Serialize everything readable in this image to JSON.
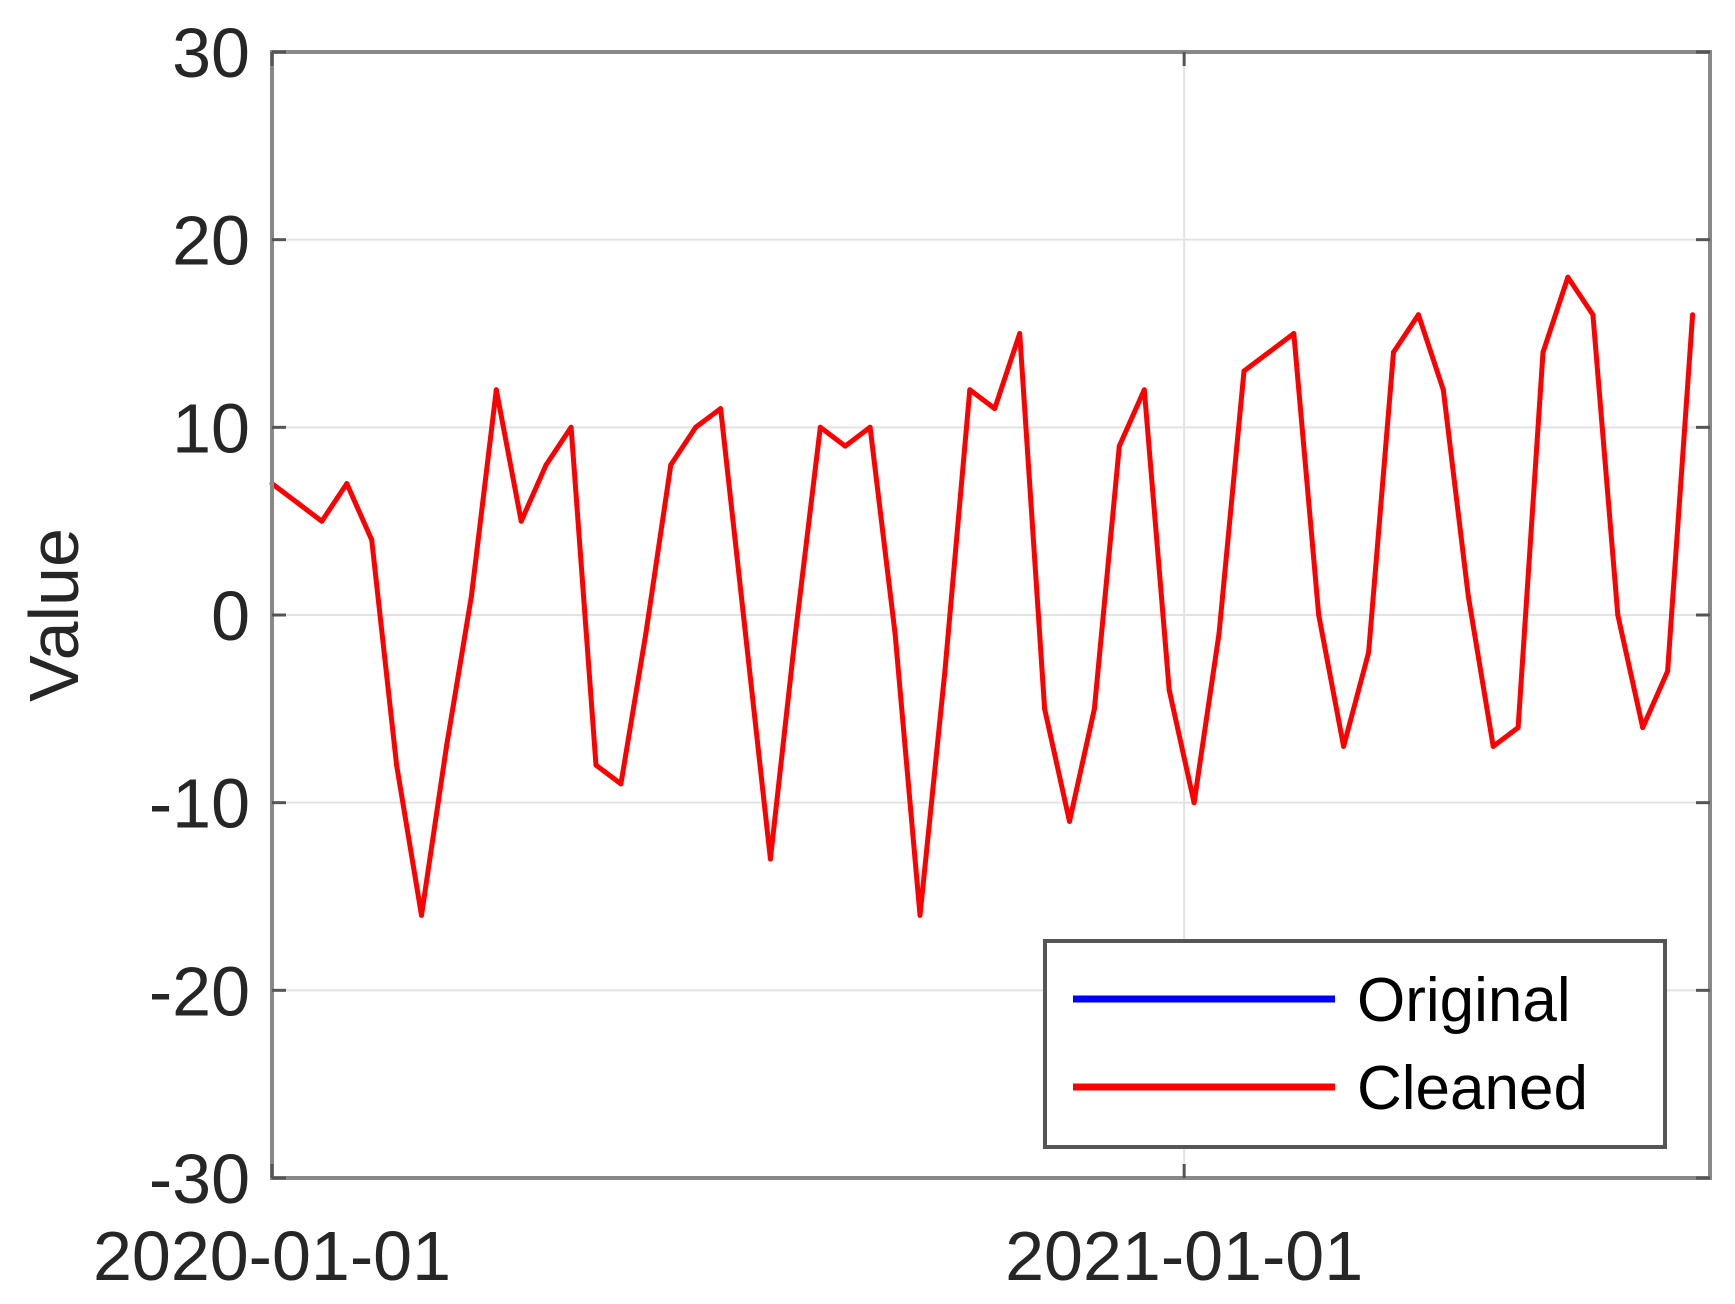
{
  "chart_data": {
    "type": "line",
    "title": "",
    "xlabel": "",
    "ylabel": "Value",
    "x_ticks": [
      "2020-01-01",
      "2021-01-01"
    ],
    "x_range": [
      "2020-01-01",
      "2021-07-31"
    ],
    "y_ticks": [
      -30,
      -20,
      -10,
      0,
      10,
      20,
      30
    ],
    "ylim": [
      -30,
      30
    ],
    "grid": true,
    "legend_position": "bottom-right",
    "series": [
      {
        "name": "Original",
        "color": "#0000ff",
        "x": [
          "2020-01-01",
          "2020-01-11",
          "2020-01-21",
          "2020-01-31",
          "2020-02-10",
          "2020-02-20",
          "2020-03-01",
          "2020-03-11",
          "2020-03-21",
          "2020-03-31",
          "2020-04-10",
          "2020-04-20",
          "2020-04-30",
          "2020-05-10",
          "2020-05-20",
          "2020-05-30",
          "2020-06-09",
          "2020-06-19",
          "2020-06-29",
          "2020-07-09",
          "2020-07-19",
          "2020-07-29",
          "2020-08-08",
          "2020-08-18",
          "2020-08-28",
          "2020-09-07",
          "2020-09-17",
          "2020-09-27",
          "2020-10-07",
          "2020-10-17",
          "2020-10-27",
          "2020-11-06",
          "2020-11-16",
          "2020-11-26",
          "2020-12-06",
          "2020-12-16",
          "2020-12-26",
          "2021-01-05",
          "2021-01-15",
          "2021-01-25",
          "2021-02-04",
          "2021-02-14",
          "2021-02-24",
          "2021-03-06",
          "2021-03-16",
          "2021-03-26",
          "2021-04-05",
          "2021-04-15",
          "2021-04-25",
          "2021-05-05",
          "2021-05-15",
          "2021-05-25",
          "2021-06-04",
          "2021-06-14",
          "2021-06-24",
          "2021-07-04",
          "2021-07-14",
          "2021-07-24"
        ],
        "values": [
          7,
          6,
          5,
          7,
          4,
          -8,
          -16,
          -7,
          1,
          12,
          5,
          8,
          10,
          -8,
          -9,
          -1,
          8,
          10,
          11,
          -1,
          -13,
          -1,
          10,
          9,
          10,
          -1,
          -16,
          -3,
          12,
          11,
          15,
          -5,
          -11,
          -5,
          9,
          12,
          -4,
          -10,
          -1,
          13,
          14,
          15,
          0,
          -7,
          -2,
          14,
          16,
          12,
          1,
          -7,
          -6,
          14,
          18,
          16,
          0,
          -6,
          -3,
          16
        ]
      },
      {
        "name": "Cleaned",
        "color": "#ff0000",
        "x": [
          "2020-01-01",
          "2020-01-11",
          "2020-01-21",
          "2020-01-31",
          "2020-02-10",
          "2020-02-20",
          "2020-03-01",
          "2020-03-11",
          "2020-03-21",
          "2020-03-31",
          "2020-04-10",
          "2020-04-20",
          "2020-04-30",
          "2020-05-10",
          "2020-05-20",
          "2020-05-30",
          "2020-06-09",
          "2020-06-19",
          "2020-06-29",
          "2020-07-09",
          "2020-07-19",
          "2020-07-29",
          "2020-08-08",
          "2020-08-18",
          "2020-08-28",
          "2020-09-07",
          "2020-09-17",
          "2020-09-27",
          "2020-10-07",
          "2020-10-17",
          "2020-10-27",
          "2020-11-06",
          "2020-11-16",
          "2020-11-26",
          "2020-12-06",
          "2020-12-16",
          "2020-12-26",
          "2021-01-05",
          "2021-01-15",
          "2021-01-25",
          "2021-02-04",
          "2021-02-14",
          "2021-02-24",
          "2021-03-06",
          "2021-03-16",
          "2021-03-26",
          "2021-04-05",
          "2021-04-15",
          "2021-04-25",
          "2021-05-05",
          "2021-05-15",
          "2021-05-25",
          "2021-06-04",
          "2021-06-14",
          "2021-06-24",
          "2021-07-04",
          "2021-07-14",
          "2021-07-24"
        ],
        "values": [
          7,
          6,
          5,
          7,
          4,
          -8,
          -16,
          -7,
          1,
          12,
          5,
          8,
          10,
          -8,
          -9,
          -1,
          8,
          10,
          11,
          -1,
          -13,
          -1,
          10,
          9,
          10,
          -1,
          -16,
          -3,
          12,
          11,
          15,
          -5,
          -11,
          -5,
          9,
          12,
          -4,
          -10,
          -1,
          13,
          14,
          15,
          0,
          -7,
          -2,
          14,
          16,
          12,
          1,
          -7,
          -6,
          14,
          18,
          16,
          0,
          -6,
          -3,
          16
        ]
      }
    ]
  }
}
